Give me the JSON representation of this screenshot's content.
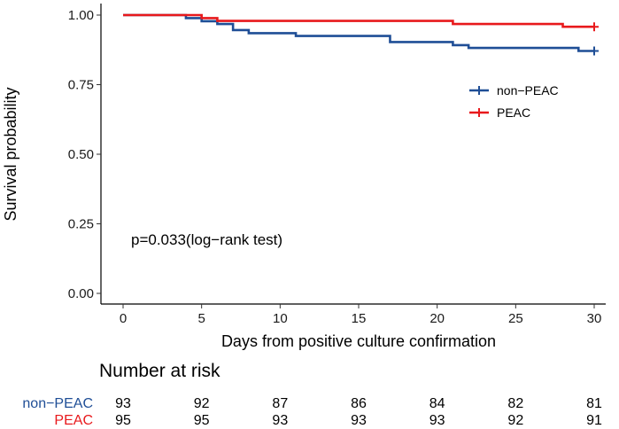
{
  "chart_data": {
    "type": "line",
    "subtype": "kaplan-meier step",
    "xlabel": "Days from positive culture confirmation",
    "ylabel": "Survival probability",
    "xlim": [
      0,
      30
    ],
    "ylim": [
      0,
      1
    ],
    "x_ticks": [
      "0",
      "5",
      "10",
      "15",
      "20",
      "25",
      "30"
    ],
    "y_ticks": [
      "0.00",
      "0.25",
      "0.50",
      "0.75",
      "1.00"
    ],
    "grid": false,
    "legend_position": "right",
    "colors": {
      "non_peac": "#1f4e96",
      "peac": "#e8191c"
    },
    "series": [
      {
        "name": "non−PEAC",
        "color": "#1f4e96",
        "x": [
          0,
          4,
          5,
          6,
          7,
          8,
          11,
          17,
          21,
          22,
          29,
          30
        ],
        "y": [
          1.0,
          0.989,
          0.978,
          0.968,
          0.946,
          0.935,
          0.925,
          0.903,
          0.892,
          0.882,
          0.871,
          0.871
        ],
        "censor": [
          [
            30,
            0.871
          ]
        ]
      },
      {
        "name": "PEAC",
        "color": "#e8191c",
        "x": [
          0,
          5,
          6,
          21,
          28,
          30
        ],
        "y": [
          1.0,
          0.989,
          0.979,
          0.968,
          0.958,
          0.958
        ],
        "censor": [
          [
            30,
            0.958
          ]
        ]
      }
    ],
    "annotation": "p=0.033(log−rank test)",
    "risk_table": {
      "title": "Number at risk",
      "times": [
        0,
        5,
        10,
        15,
        20,
        25,
        30
      ],
      "rows": [
        {
          "label": "non−PEAC",
          "color": "#1f4e96",
          "values": [
            "93",
            "92",
            "87",
            "86",
            "84",
            "82",
            "81"
          ]
        },
        {
          "label": "PEAC",
          "color": "#e8191c",
          "values": [
            "95",
            "95",
            "93",
            "93",
            "93",
            "92",
            "91"
          ]
        }
      ]
    }
  }
}
